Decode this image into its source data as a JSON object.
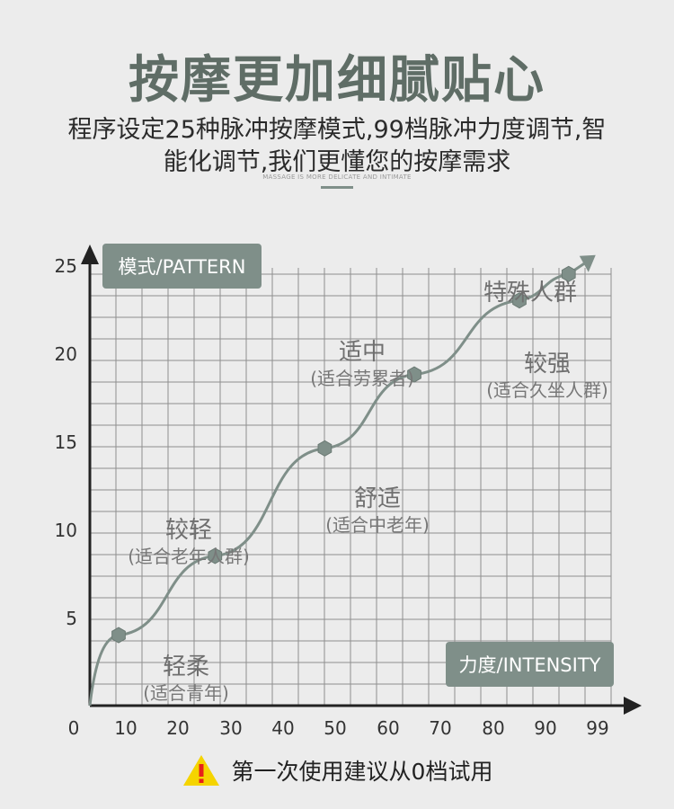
{
  "header": {
    "title": "按摩更加细腻贴心",
    "subtitle_line1": "程序设定25种脉冲按摩模式,99档脉冲力度调节,智",
    "subtitle_line2": "能化调节,我们更懂您的按摩需求",
    "tagline": "MASSAGE IS MORE DELICATE AND INTIMATE"
  },
  "chart_data": {
    "type": "line",
    "ylabel": "模式/PATTERN",
    "xlabel": "力度/INTENSITY",
    "x_ticks": [
      "0",
      "10",
      "20",
      "30",
      "40",
      "50",
      "60",
      "70",
      "80",
      "90",
      "99"
    ],
    "y_ticks": [
      "5",
      "10",
      "15",
      "20",
      "25"
    ],
    "xlim": [
      0,
      100
    ],
    "ylim": [
      0,
      27
    ],
    "grid": true,
    "points": [
      {
        "x": 8,
        "y": 4
      },
      {
        "x": 27,
        "y": 8.5
      },
      {
        "x": 48,
        "y": 14.6
      },
      {
        "x": 65,
        "y": 18.8
      },
      {
        "x": 85,
        "y": 23
      },
      {
        "x": 94,
        "y": 24.5
      }
    ],
    "annotations": [
      {
        "name": "轻柔",
        "note": "(适合青年)"
      },
      {
        "name": "较轻",
        "note": "(适合老年人群)"
      },
      {
        "name": "舒适",
        "note": "(适合中老年)"
      },
      {
        "name": "适中",
        "note": "(适合劳累者)"
      },
      {
        "name": "较强",
        "note": "(适合久坐人群)"
      },
      {
        "name": "特殊人群",
        "note": ""
      }
    ]
  },
  "footer": {
    "tip": "第一次使用建议从0档试用"
  },
  "colors": {
    "accent": "#7f8f89",
    "title": "#5f6d66",
    "axis": "#222222",
    "warning": "#f5d400",
    "warning_mark": "#e8201a"
  }
}
